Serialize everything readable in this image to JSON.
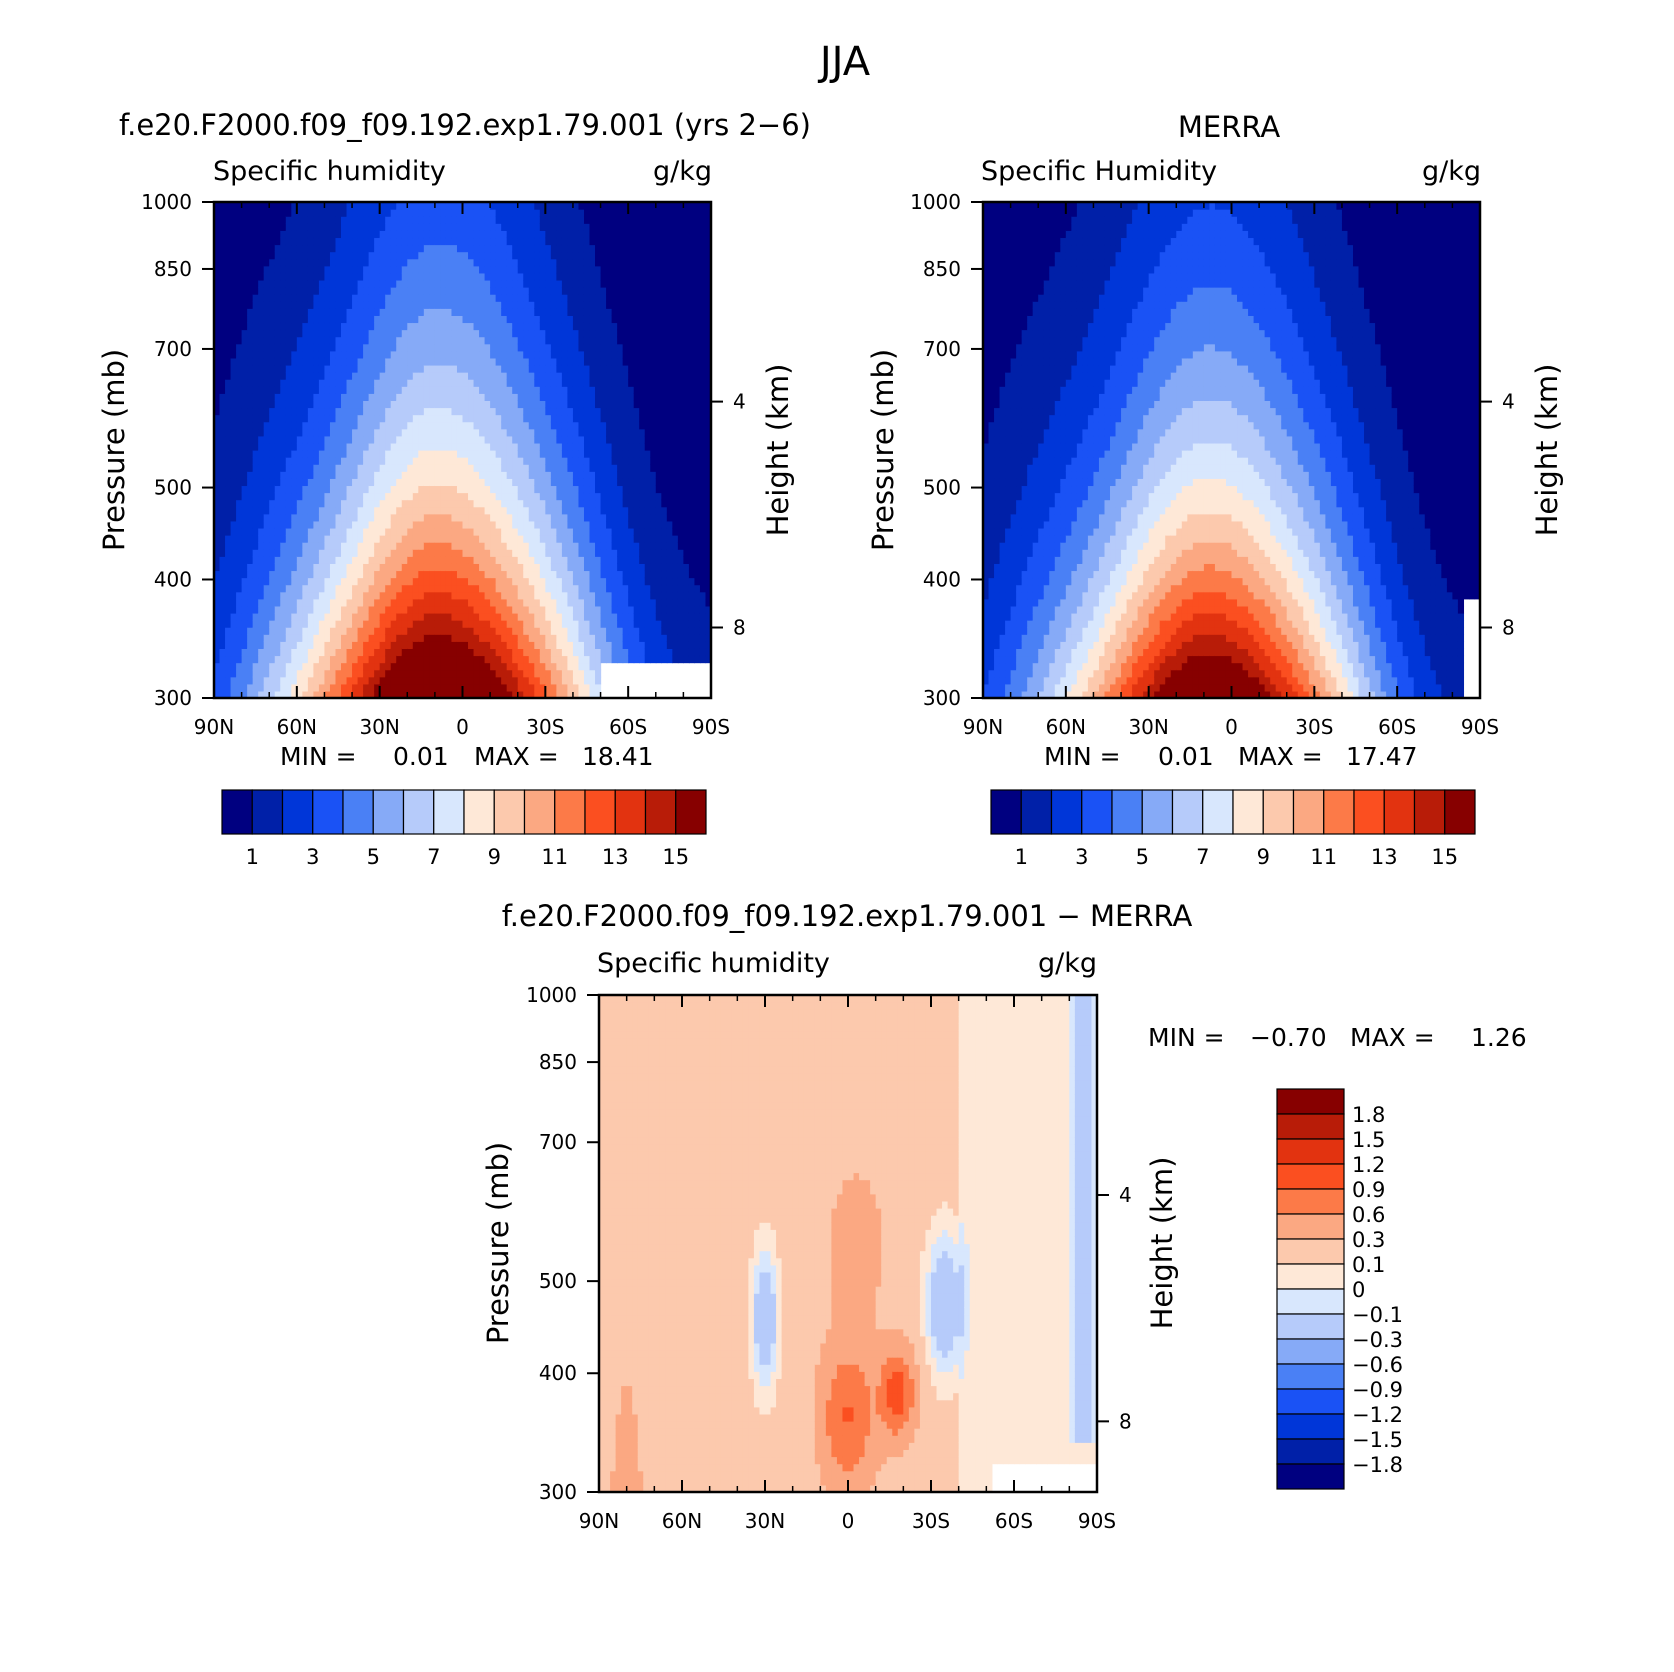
{
  "figure_title": "JJA",
  "colors": {
    "abs": [
      "#000080",
      "#0020a8",
      "#0036d8",
      "#1a52f5",
      "#4a80f5",
      "#86aaf7",
      "#b6cbfa",
      "#d8e7fd",
      "#fee8d7",
      "#fcc9ad",
      "#fba882",
      "#fc7a48",
      "#fb4f20",
      "#e23310",
      "#b81c08",
      "#870000"
    ],
    "diff": [
      "#000080",
      "#0020a8",
      "#0036d8",
      "#1a52f5",
      "#4a80f5",
      "#86aaf7",
      "#b6cbfa",
      "#d8e7fd",
      "#fee8d7",
      "#fcc9ad",
      "#fba882",
      "#fc7a48",
      "#fb4f20",
      "#e23310",
      "#b81c08",
      "#870000"
    ]
  },
  "chart_data": [
    {
      "type": "heatmap",
      "panel_title": "f.e20.F2000.f09_f09.192.exp1.79.001 (yrs 2−6)",
      "left_label": "Specific humidity",
      "right_label": "g/kg",
      "ylabel": "Pressure (mb)",
      "ylabel_right": "Height (km)",
      "x_tick_labels": [
        "90N",
        "60N",
        "30N",
        "0",
        "30S",
        "60S",
        "90S"
      ],
      "x_ticks": [
        90,
        60,
        30,
        0,
        -30,
        -60,
        -90
      ],
      "y_tick_labels": [
        "300",
        "400",
        "500",
        "700",
        "850",
        "1000"
      ],
      "y_ticks": [
        300,
        400,
        500,
        700,
        850,
        1000
      ],
      "y_right_tick_labels": [
        "8",
        "4"
      ],
      "xlim": [
        90,
        -90
      ],
      "ylim": [
        1000,
        300
      ],
      "y_scale": "log",
      "levels": [
        1,
        2,
        3,
        4,
        5,
        6,
        7,
        8,
        9,
        10,
        11,
        12,
        13,
        14,
        15
      ],
      "colorbar_labels": [
        "1",
        "3",
        "5",
        "7",
        "9",
        "11",
        "13",
        "15"
      ],
      "min_label": "MIN =",
      "min_value": "0.01",
      "max_label": "MAX =",
      "max_value": "18.41",
      "field": {
        "peak_lat": 8,
        "peak": 18.41,
        "lat_width": 40,
        "asym": 0.92,
        "scale_height_frac": 0.33,
        "floor": 0.01
      },
      "missing": {
        "lat_from": -50,
        "p_from": 920
      }
    },
    {
      "type": "heatmap",
      "panel_title": "MERRA",
      "left_label": "Specific Humidity",
      "right_label": "g/kg",
      "ylabel": "Pressure (mb)",
      "ylabel_right": "Height (km)",
      "x_tick_labels": [
        "90N",
        "60N",
        "30N",
        "0",
        "30S",
        "60S",
        "90S"
      ],
      "x_ticks": [
        90,
        60,
        30,
        0,
        -30,
        -60,
        -90
      ],
      "y_tick_labels": [
        "300",
        "400",
        "500",
        "700",
        "850",
        "1000"
      ],
      "y_ticks": [
        300,
        400,
        500,
        700,
        850,
        1000
      ],
      "y_right_tick_labels": [
        "8",
        "4"
      ],
      "xlim": [
        90,
        -90
      ],
      "ylim": [
        1000,
        300
      ],
      "y_scale": "log",
      "levels": [
        1,
        2,
        3,
        4,
        5,
        6,
        7,
        8,
        9,
        10,
        11,
        12,
        13,
        14,
        15
      ],
      "colorbar_labels": [
        "1",
        "3",
        "5",
        "7",
        "9",
        "11",
        "13",
        "15"
      ],
      "min_label": "MIN =",
      "min_value": "0.01",
      "max_label": "MAX =",
      "max_value": "17.47",
      "field": {
        "peak_lat": 7,
        "peak": 17.47,
        "lat_width": 38,
        "asym": 0.95,
        "scale_height_frac": 0.31,
        "floor": 0.01
      },
      "missing": {
        "lat_from": -85,
        "p_from": 780
      }
    },
    {
      "type": "heatmap",
      "panel_title": "f.e20.F2000.f09_f09.192.exp1.79.001 − MERRA",
      "left_label": "Specific humidity",
      "right_label": "g/kg",
      "ylabel": "Pressure (mb)",
      "ylabel_right": "Height (km)",
      "x_tick_labels": [
        "90N",
        "60N",
        "30N",
        "0",
        "30S",
        "60S",
        "90S"
      ],
      "x_ticks": [
        90,
        60,
        30,
        0,
        -30,
        -60,
        -90
      ],
      "y_tick_labels": [
        "300",
        "400",
        "500",
        "700",
        "850",
        "1000"
      ],
      "y_ticks": [
        300,
        400,
        500,
        700,
        850,
        1000
      ],
      "y_right_tick_labels": [
        "8",
        "4"
      ],
      "xlim": [
        90,
        -90
      ],
      "ylim": [
        1000,
        300
      ],
      "y_scale": "log",
      "levels": [
        -1.8,
        -1.5,
        -1.2,
        -0.9,
        -0.6,
        -0.3,
        -0.1,
        0,
        0.1,
        0.3,
        0.6,
        0.9,
        1.2,
        1.5,
        1.8
      ],
      "colorbar_labels": [
        "1.8",
        "1.5",
        "1.2",
        "0.9",
        "0.6",
        "0.3",
        "0.1",
        "0",
        "−0.1",
        "−0.3",
        "−0.6",
        "−0.9",
        "−1.2",
        "−1.5",
        "−1.8"
      ],
      "min_label": "MIN =",
      "min_value": "−0.70",
      "max_label": "MAX =",
      "max_value": "1.26",
      "missing": {
        "lat_from": -52,
        "p_from": 940
      }
    }
  ]
}
